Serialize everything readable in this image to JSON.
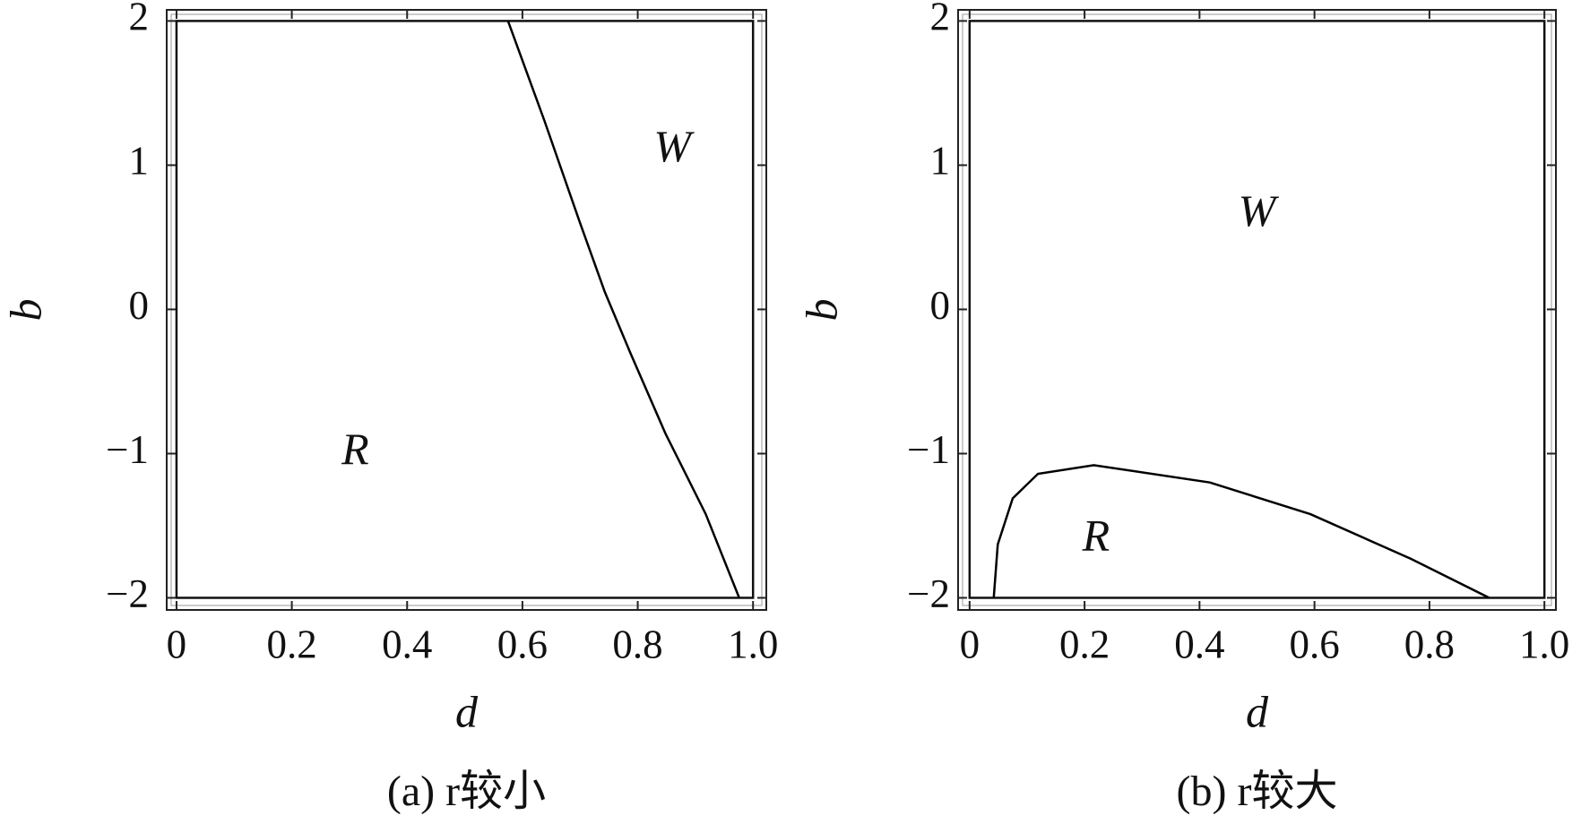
{
  "chart_data": [
    {
      "type": "line",
      "xlabel": "d",
      "ylabel": "b",
      "caption": "(a) r较小",
      "annotations": [
        "W",
        "R"
      ],
      "x": [
        0.575,
        0.638,
        0.699,
        0.743,
        0.787,
        0.848,
        0.918,
        0.976
      ],
      "series": [
        {
          "color": "#000000",
          "values": [
            2,
            1.31,
            0.61,
            0.12,
            -0.3,
            -0.86,
            -1.42,
            -2
          ]
        }
      ],
      "xlim": [
        -0.017,
        1.023
      ],
      "ylim": [
        -2.084,
        2.077
      ],
      "xticks": [
        0,
        0.2,
        0.4,
        0.6,
        0.8,
        {
          "value": 1,
          "label": "1.0"
        }
      ],
      "yticks": [
        {
          "value": -2,
          "label": "−2"
        },
        {
          "value": -1,
          "label": "−1"
        },
        0,
        1,
        2
      ]
    },
    {
      "type": "line",
      "xlabel": "d",
      "ylabel": "b",
      "caption": "(b) r较大",
      "annotations": [
        "W",
        "R"
      ],
      "x": [
        0.042,
        0.049,
        0.075,
        0.119,
        0.216,
        0.418,
        0.593,
        0.768,
        0.904
      ],
      "series": [
        {
          "color": "#000000",
          "values": [
            -2,
            -1.63,
            -1.31,
            -1.14,
            -1.08,
            -1.2,
            -1.42,
            -1.73,
            -2
          ]
        }
      ],
      "xlim": [
        -0.02,
        1.02
      ],
      "ylim": [
        -2.084,
        2.077
      ],
      "xticks": [
        0,
        0.2,
        0.4,
        0.6,
        0.8,
        {
          "value": 1,
          "label": "1.0"
        }
      ],
      "yticks": [
        {
          "value": -2,
          "label": "−2"
        },
        {
          "value": -1,
          "label": "−1"
        },
        0,
        1,
        2
      ]
    }
  ]
}
